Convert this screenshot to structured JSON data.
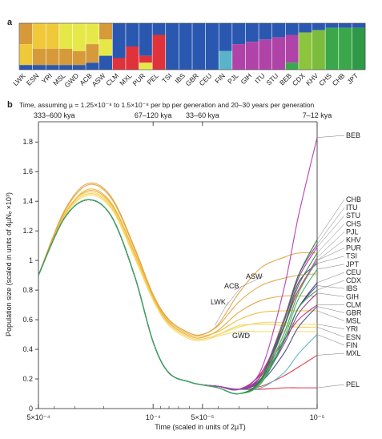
{
  "panel_a": {
    "label": "a",
    "populations": [
      "LWK",
      "ESN",
      "YRI",
      "MSL",
      "GWD",
      "ACB",
      "ASW",
      "CLM",
      "MXL",
      "PUR",
      "PEL",
      "TSI",
      "IBS",
      "GBR",
      "CEU",
      "FIN",
      "PJL",
      "GIH",
      "ITU",
      "STU",
      "BEB",
      "CDX",
      "KHV",
      "CHS",
      "CHB",
      "JPT"
    ]
  },
  "panel_b": {
    "label": "b",
    "caption": "Time, assuming µ = 1.25×10⁻⁸ to 1.5×10⁻⁸ per bp per generation and 20–30 years per generation",
    "top_axis": [
      {
        "label": "333–600 kya",
        "at": 0.0005
      },
      {
        "label": "67–120 kya",
        "at": 0.0001
      },
      {
        "label": "33–60 kya",
        "at": 5e-05
      },
      {
        "label": "7–12 kya",
        "at": 1e-05
      }
    ]
  },
  "chart_data": {
    "type": "line",
    "xlabel": "Time (scaled in units of 2µT)",
    "ylabel": "Population size (scaled in units of 4µNₑ ×10³)",
    "x_scale": "log",
    "x_reversed": true,
    "xlim": [
      0.0005,
      1e-05
    ],
    "x_ticks": [
      {
        "value": 0.0005,
        "label": "5×10⁻⁴"
      },
      {
        "value": 0.0001,
        "label": "10⁻⁴"
      },
      {
        "value": 5e-05,
        "label": "5×10⁻⁵"
      },
      {
        "value": 1e-05,
        "label": "10⁻⁵"
      }
    ],
    "ylim": [
      0,
      1.85
    ],
    "y_ticks": [
      0,
      0.2,
      0.4,
      0.6,
      0.8,
      1,
      1.2,
      1.4,
      1.6,
      1.8
    ],
    "x_points": [
      0.0005,
      0.00035,
      0.00025,
      0.00018,
      0.00013,
      0.0001,
      8e-05,
      6e-05,
      5e-05,
      4e-05,
      3e-05,
      2.2e-05,
      1.6e-05,
      1.3e-05,
      1e-05
    ],
    "series": [
      {
        "name": "LWK",
        "group": "AFR",
        "color": "#e8a13a",
        "values": [
          0.9,
          1.3,
          1.47,
          1.38,
          1.05,
          0.75,
          0.58,
          0.49,
          0.48,
          0.53,
          0.65,
          0.73,
          0.76,
          0.76,
          0.76
        ]
      },
      {
        "name": "ESN",
        "group": "AFR",
        "color": "#f2cf4a",
        "values": [
          0.9,
          1.3,
          1.45,
          1.36,
          1.03,
          0.74,
          0.57,
          0.48,
          0.47,
          0.5,
          0.56,
          0.57,
          0.56,
          0.55,
          0.55
        ]
      },
      {
        "name": "YRI",
        "group": "AFR",
        "color": "#f6d860",
        "values": [
          0.9,
          1.31,
          1.46,
          1.37,
          1.04,
          0.74,
          0.57,
          0.48,
          0.47,
          0.5,
          0.55,
          0.58,
          0.58,
          0.57,
          0.57
        ]
      },
      {
        "name": "MSL",
        "group": "AFR",
        "color": "#ecbc3c",
        "values": [
          0.9,
          1.3,
          1.48,
          1.39,
          1.06,
          0.76,
          0.59,
          0.5,
          0.49,
          0.52,
          0.6,
          0.65,
          0.66,
          0.66,
          0.66
        ]
      },
      {
        "name": "GWD",
        "group": "AFR",
        "color": "#f7d96b",
        "values": [
          0.9,
          1.29,
          1.44,
          1.35,
          1.02,
          0.73,
          0.56,
          0.47,
          0.46,
          0.49,
          0.52,
          0.52,
          0.52,
          0.52,
          0.52
        ]
      },
      {
        "name": "ACB",
        "group": "AFR",
        "color": "#e6a446",
        "values": [
          0.9,
          1.32,
          1.51,
          1.42,
          1.08,
          0.77,
          0.6,
          0.51,
          0.5,
          0.56,
          0.72,
          0.83,
          0.88,
          0.9,
          0.91
        ]
      },
      {
        "name": "ASW",
        "group": "AFR",
        "color": "#e5a33d",
        "values": [
          0.9,
          1.33,
          1.52,
          1.43,
          1.09,
          0.77,
          0.6,
          0.51,
          0.5,
          0.57,
          0.78,
          0.95,
          1.02,
          1.05,
          1.05
        ]
      },
      {
        "name": "CLM",
        "group": "AMR",
        "color": "#c0306b",
        "values": [
          0.9,
          1.28,
          1.41,
          1.3,
          0.9,
          0.45,
          0.24,
          0.18,
          0.16,
          0.15,
          0.13,
          0.23,
          0.46,
          0.6,
          0.7
        ]
      },
      {
        "name": "MXL",
        "group": "AMR",
        "color": "#e4393a",
        "values": [
          0.9,
          1.28,
          1.41,
          1.3,
          0.9,
          0.45,
          0.24,
          0.18,
          0.16,
          0.15,
          0.13,
          0.15,
          0.22,
          0.28,
          0.36
        ]
      },
      {
        "name": "PUR",
        "group": "AMR",
        "color": "#cc2f5c",
        "values": [
          0.9,
          1.28,
          1.41,
          1.3,
          0.9,
          0.45,
          0.24,
          0.18,
          0.16,
          0.15,
          0.13,
          0.24,
          0.55,
          0.8,
          1.0
        ]
      },
      {
        "name": "PEL",
        "group": "AMR",
        "color": "#d72d3a",
        "values": [
          0.9,
          1.28,
          1.41,
          1.3,
          0.9,
          0.45,
          0.24,
          0.18,
          0.16,
          0.15,
          0.13,
          0.13,
          0.14,
          0.14,
          0.14
        ]
      },
      {
        "name": "TSI",
        "group": "EUR",
        "color": "#5b3a86",
        "values": [
          0.9,
          1.28,
          1.41,
          1.3,
          0.9,
          0.45,
          0.24,
          0.18,
          0.16,
          0.15,
          0.13,
          0.22,
          0.55,
          0.85,
          0.98
        ]
      },
      {
        "name": "IBS",
        "group": "EUR",
        "color": "#4a4e94",
        "values": [
          0.9,
          1.28,
          1.41,
          1.3,
          0.9,
          0.45,
          0.24,
          0.18,
          0.16,
          0.15,
          0.13,
          0.2,
          0.45,
          0.68,
          0.83
        ]
      },
      {
        "name": "GBR",
        "group": "EUR",
        "color": "#3c4a8a",
        "values": [
          0.9,
          1.28,
          1.41,
          1.3,
          0.9,
          0.45,
          0.24,
          0.18,
          0.16,
          0.15,
          0.13,
          0.18,
          0.37,
          0.55,
          0.69
        ]
      },
      {
        "name": "CEU",
        "group": "EUR",
        "color": "#2c3c7e",
        "values": [
          0.9,
          1.28,
          1.41,
          1.3,
          0.9,
          0.45,
          0.24,
          0.18,
          0.16,
          0.15,
          0.13,
          0.2,
          0.45,
          0.68,
          0.85
        ]
      },
      {
        "name": "FIN",
        "group": "EUR",
        "color": "#5ab3c9",
        "values": [
          0.9,
          1.28,
          1.41,
          1.3,
          0.9,
          0.45,
          0.24,
          0.18,
          0.16,
          0.15,
          0.13,
          0.14,
          0.24,
          0.37,
          0.5
        ]
      },
      {
        "name": "PJL",
        "group": "SAS",
        "color": "#b448b0",
        "values": [
          0.9,
          1.28,
          1.41,
          1.3,
          0.9,
          0.45,
          0.24,
          0.18,
          0.16,
          0.15,
          0.13,
          0.2,
          0.5,
          0.78,
          1.02
        ]
      },
      {
        "name": "GIH",
        "group": "SAS",
        "color": "#8e3aa0",
        "values": [
          0.9,
          1.28,
          1.41,
          1.3,
          0.9,
          0.45,
          0.24,
          0.18,
          0.16,
          0.15,
          0.13,
          0.19,
          0.43,
          0.64,
          0.78
        ]
      },
      {
        "name": "ITU",
        "group": "SAS",
        "color": "#a040a8",
        "values": [
          0.9,
          1.28,
          1.41,
          1.3,
          0.9,
          0.45,
          0.24,
          0.18,
          0.16,
          0.15,
          0.13,
          0.22,
          0.6,
          0.9,
          1.11
        ]
      },
      {
        "name": "STU",
        "group": "SAS",
        "color": "#9a3aa4",
        "values": [
          0.9,
          1.28,
          1.41,
          1.3,
          0.9,
          0.45,
          0.24,
          0.18,
          0.16,
          0.15,
          0.13,
          0.22,
          0.58,
          0.88,
          1.09
        ]
      },
      {
        "name": "BEB",
        "group": "SAS",
        "color": "#b23ab2",
        "values": [
          0.9,
          1.28,
          1.41,
          1.3,
          0.9,
          0.45,
          0.24,
          0.18,
          0.16,
          0.15,
          0.13,
          0.26,
          0.8,
          1.3,
          1.83
        ]
      },
      {
        "name": "CDX",
        "group": "EAS",
        "color": "#3a9a4c",
        "values": [
          0.9,
          1.28,
          1.41,
          1.3,
          0.9,
          0.45,
          0.24,
          0.18,
          0.16,
          0.14,
          0.1,
          0.17,
          0.45,
          0.68,
          0.8
        ]
      },
      {
        "name": "KHV",
        "group": "EAS",
        "color": "#54b35c",
        "values": [
          0.9,
          1.28,
          1.41,
          1.3,
          0.9,
          0.45,
          0.24,
          0.18,
          0.16,
          0.14,
          0.1,
          0.18,
          0.5,
          0.78,
          1.0
        ]
      },
      {
        "name": "CHS",
        "group": "EAS",
        "color": "#2e8a3a",
        "values": [
          0.9,
          1.28,
          1.41,
          1.3,
          0.9,
          0.45,
          0.24,
          0.18,
          0.16,
          0.14,
          0.1,
          0.19,
          0.54,
          0.83,
          1.05
        ]
      },
      {
        "name": "CHB",
        "group": "EAS",
        "color": "#248034",
        "values": [
          0.9,
          1.28,
          1.41,
          1.3,
          0.9,
          0.45,
          0.24,
          0.18,
          0.16,
          0.14,
          0.1,
          0.2,
          0.58,
          0.9,
          1.14
        ]
      },
      {
        "name": "JPT",
        "group": "EAS",
        "color": "#3cac6a",
        "values": [
          0.9,
          1.28,
          1.41,
          1.3,
          0.9,
          0.45,
          0.24,
          0.18,
          0.16,
          0.14,
          0.1,
          0.17,
          0.47,
          0.74,
          0.94
        ]
      }
    ],
    "right_labels": [
      "BEB",
      "CHB",
      "ITU",
      "STU",
      "CHS",
      "PJL",
      "KHV",
      "PUR",
      "TSI",
      "JPT",
      "CEU",
      "CDX",
      "IBS",
      "GIH",
      "CLM",
      "GBR",
      "MSL",
      "YRI",
      "ESN",
      "FIN",
      "MXL",
      "PEL"
    ],
    "inline_labels": [
      "ASW",
      "ACB",
      "LWK",
      "GWD"
    ]
  },
  "colors": {
    "AFR": "#f0c93a",
    "AMR": "#e0323a",
    "EUR": "#2a58b0",
    "SAS": "#b043a8",
    "EAS": "#3aa84a",
    "axis": "#222222"
  }
}
